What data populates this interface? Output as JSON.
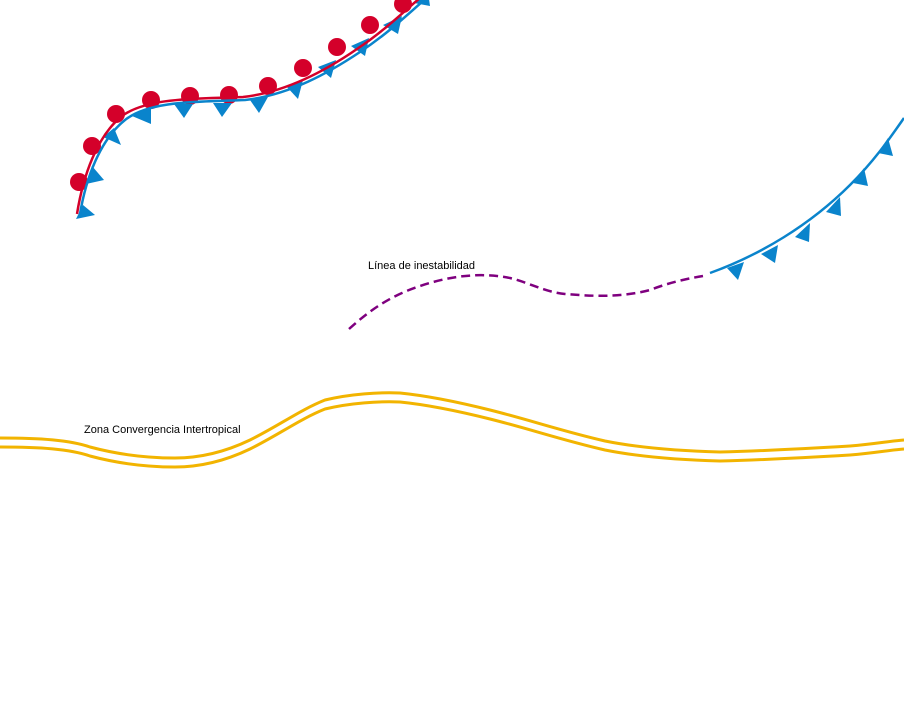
{
  "map": {
    "labels": {
      "squall_line": "Línea de inestabilidad",
      "itcz": "Zona Convergencia Intertropical"
    },
    "colors": {
      "background": "#ffffff",
      "warm_front": "#d4002a",
      "cold_front": "#0a84cc",
      "squall_line": "#7f007f",
      "itcz": "#f2b400",
      "label_text": "#000000"
    },
    "features": [
      {
        "id": "occluded-front",
        "kind": "stationary front",
        "symbols": [
          "warm-semicircle",
          "cold-triangle"
        ]
      },
      {
        "id": "cold-front",
        "kind": "cold front",
        "symbols": [
          "cold-triangle"
        ]
      },
      {
        "id": "squall-line",
        "kind": "line of instability",
        "style": "dashed"
      },
      {
        "id": "itcz",
        "kind": "intertropical convergence zone",
        "style": "double line"
      }
    ]
  }
}
